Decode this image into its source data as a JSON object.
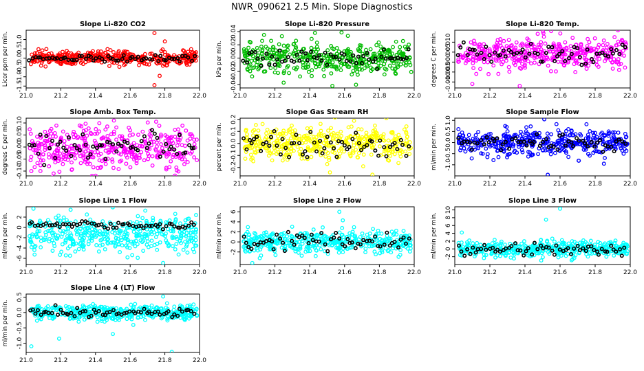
{
  "page": {
    "title": "NWR_090621  2.5 Min. Slope Diagnostics"
  },
  "chart_data": [
    {
      "id": "co2",
      "type": "scatter",
      "title": "Slope Li-820 CO2",
      "ylabel": "Licor ppm per min.",
      "color": "#ff0000",
      "xlim": [
        21.0,
        22.0
      ],
      "ylim": [
        -1.6,
        1.5
      ],
      "yticks": [
        -1.5,
        -1.0,
        -0.5,
        0.0,
        0.5,
        1.0
      ],
      "yticklabels": [
        "-1.5",
        "-1.0",
        "-0.5",
        "0.0",
        "0.5",
        "1.0"
      ],
      "xticks": [
        21.0,
        21.2,
        21.4,
        21.6,
        21.8,
        22.0
      ],
      "xticklabels": [
        "21.0",
        "21.2",
        "21.4",
        "21.6",
        "21.8",
        "22.0"
      ],
      "spread": 0.18,
      "black_spread": 0.1,
      "outliers": [
        [
          21.74,
          1.35
        ],
        [
          21.74,
          -1.45
        ],
        [
          21.77,
          -0.95
        ],
        [
          21.8,
          0.9
        ]
      ]
    },
    {
      "id": "pressure",
      "type": "scatter",
      "title": "Slope Li-820 Pressure",
      "ylabel": "kPa per min.",
      "color": "#00bb00",
      "xlim": [
        21.0,
        22.0
      ],
      "ylim": [
        -0.045,
        0.042
      ],
      "yticks": [
        -0.04,
        -0.02,
        0.0,
        0.02,
        0.04
      ],
      "yticklabels": [
        "-0.04",
        "-0.02",
        "0.00",
        "0.02",
        "0.04"
      ],
      "xticks": [
        21.0,
        21.2,
        21.4,
        21.6,
        21.8,
        22.0
      ],
      "xticklabels": [
        "21.0",
        "21.2",
        "21.4",
        "21.6",
        "21.8",
        "22.0"
      ],
      "spread": 0.012,
      "black_spread": 0.006,
      "outliers": [
        [
          21.43,
          0.038
        ],
        [
          21.24,
          0.033
        ],
        [
          21.53,
          -0.042
        ],
        [
          21.25,
          -0.037
        ]
      ]
    },
    {
      "id": "temp",
      "type": "scatter",
      "title": "Slope Li-820 Temp.",
      "ylabel": "degrees C per min.",
      "color": "#ff00ff",
      "xlim": [
        21.0,
        22.0
      ],
      "ylim": [
        -0.013,
        0.016
      ],
      "yticks": [
        -0.01,
        -0.005,
        0.0,
        0.005,
        0.01
      ],
      "yticklabels": [
        "-0.010",
        "-0.005",
        "0.000",
        "0.005",
        "0.010"
      ],
      "xticks": [
        21.0,
        21.2,
        21.4,
        21.6,
        21.8,
        22.0
      ],
      "xticklabels": [
        "21.0",
        "21.2",
        "21.4",
        "21.6",
        "21.8",
        "22.0"
      ],
      "center": 0.004,
      "spread": 0.004,
      "black_spread": 0.003,
      "outliers": [
        [
          21.93,
          0.016
        ],
        [
          21.1,
          -0.011
        ],
        [
          21.37,
          -0.012
        ]
      ]
    },
    {
      "id": "ambbox",
      "type": "scatter",
      "title": "Slope Amb. Box Temp.",
      "ylabel": "degrees C per min.",
      "color": "#ff00ff",
      "xlim": [
        21.0,
        22.0
      ],
      "ylim": [
        -0.12,
        0.12
      ],
      "yticks": [
        -0.1,
        -0.05,
        0.0,
        0.05,
        0.1
      ],
      "yticklabels": [
        "-0.10",
        "-0.05",
        "0.00",
        "0.05",
        "0.10"
      ],
      "xticks": [
        21.0,
        21.2,
        21.4,
        21.6,
        21.8,
        22.0
      ],
      "xticklabels": [
        "21.0",
        "21.2",
        "21.4",
        "21.6",
        "21.8",
        "22.0"
      ],
      "spread": 0.045,
      "black_spread": 0.03,
      "outliers": [
        [
          21.38,
          -0.12
        ],
        [
          21.03,
          -0.1
        ]
      ]
    },
    {
      "id": "rh",
      "type": "scatter",
      "title": "Slope Gas Stream RH",
      "ylabel": "percent per min.",
      "color": "#ffff00",
      "xlim": [
        21.0,
        22.0
      ],
      "ylim": [
        -0.27,
        0.21
      ],
      "yticks": [
        -0.2,
        -0.1,
        0.0,
        0.1,
        0.2
      ],
      "yticklabels": [
        "-0.2",
        "-0.1",
        "0.0",
        "0.1",
        "0.2"
      ],
      "xticks": [
        21.0,
        21.2,
        21.4,
        21.6,
        21.8,
        22.0
      ],
      "xticklabels": [
        "21.0",
        "21.2",
        "21.4",
        "21.6",
        "21.8",
        "22.0"
      ],
      "spread": 0.075,
      "black_spread": 0.06,
      "outliers": [
        [
          21.76,
          -0.26
        ],
        [
          21.84,
          0.21
        ]
      ]
    },
    {
      "id": "sampleflow",
      "type": "scatter",
      "title": "Slope Sample Flow",
      "ylabel": "ml/min per min.",
      "color": "#0000ff",
      "xlim": [
        21.0,
        22.0
      ],
      "ylim": [
        -1.5,
        1.1
      ],
      "yticks": [
        -1.0,
        -0.5,
        0.0,
        0.5,
        1.0
      ],
      "yticklabels": [
        "-1.0",
        "-0.5",
        "0.0",
        "0.5",
        "1.0"
      ],
      "xticks": [
        21.0,
        21.2,
        21.4,
        21.6,
        21.8,
        22.0
      ],
      "xticklabels": [
        "21.0",
        "21.2",
        "21.4",
        "21.6",
        "21.8",
        "22.0"
      ],
      "spread": 0.28,
      "black_spread": 0.2,
      "outliers": [
        [
          21.51,
          1.05
        ],
        [
          21.53,
          -1.45
        ],
        [
          21.85,
          -0.95
        ]
      ]
    },
    {
      "id": "line1",
      "type": "scatter",
      "title": "Slope Line 1 Flow",
      "ylabel": "ml/min per min.",
      "color": "#00ffff",
      "xlim": [
        21.0,
        22.0
      ],
      "ylim": [
        -7.2,
        4.0
      ],
      "yticks": [
        -6,
        -4,
        -2,
        0,
        2
      ],
      "yticklabels": [
        "-6",
        "-4",
        "-2",
        "0",
        "2"
      ],
      "xticks": [
        21.0,
        21.2,
        21.4,
        21.6,
        21.8,
        22.0
      ],
      "xticklabels": [
        "21.0",
        "21.2",
        "21.4",
        "21.6",
        "21.8",
        "22.0"
      ],
      "center": -1.5,
      "spread": 1.8,
      "black_center": 0.4,
      "black_spread": 0.3,
      "outliers": [
        [
          21.5,
          3.9
        ],
        [
          21.79,
          -6.9
        ],
        [
          21.98,
          2.4
        ]
      ]
    },
    {
      "id": "line2",
      "type": "scatter",
      "title": "Slope Line 2 Flow",
      "ylabel": "ml/min per min.",
      "color": "#00ffff",
      "xlim": [
        21.0,
        22.0
      ],
      "ylim": [
        -4.5,
        7.0
      ],
      "yticks": [
        -2,
        0,
        2,
        4,
        6
      ],
      "yticklabels": [
        "-2",
        "0",
        "2",
        "4",
        "6"
      ],
      "xticks": [
        21.0,
        21.2,
        21.4,
        21.6,
        21.8,
        22.0
      ],
      "xticklabels": [
        "21.0",
        "21.2",
        "21.4",
        "21.6",
        "21.8",
        "22.0"
      ],
      "spread": 1.1,
      "black_spread": 0.9,
      "outliers": [
        [
          21.57,
          6.0
        ],
        [
          21.07,
          -4.2
        ],
        [
          21.59,
          4.3
        ]
      ]
    },
    {
      "id": "line3",
      "type": "scatter",
      "title": "Slope Line 3 Flow",
      "ylabel": "ml/min per min.",
      "color": "#00ffff",
      "xlim": [
        21.0,
        22.0
      ],
      "ylim": [
        -4.0,
        10.8
      ],
      "yticks": [
        -2,
        0,
        2,
        4,
        6,
        8,
        10
      ],
      "yticklabels": [
        "-2",
        "0",
        "2",
        "4",
        "6",
        "8",
        "10"
      ],
      "xticks": [
        21.0,
        21.2,
        21.4,
        21.6,
        21.8,
        22.0
      ],
      "xticklabels": [
        "21.0",
        "21.2",
        "21.4",
        "21.6",
        "21.8",
        "22.0"
      ],
      "spread": 1.0,
      "black_spread": 0.8,
      "outliers": [
        [
          21.6,
          10.3
        ],
        [
          21.52,
          7.5
        ],
        [
          21.04,
          4.2
        ]
      ]
    },
    {
      "id": "line4",
      "type": "scatter",
      "title": "Slope Line 4 (LT) Flow",
      "ylabel": "ml/min per min.",
      "color": "#00ffff",
      "xlim": [
        21.0,
        22.0
      ],
      "ylim": [
        -1.3,
        0.6
      ],
      "yticks": [
        -1.0,
        -0.5,
        0.0,
        0.5
      ],
      "yticklabels": [
        "-1.0",
        "-0.5",
        "0.0",
        "0.5"
      ],
      "xticks": [
        21.0,
        21.2,
        21.4,
        21.6,
        21.8,
        22.0
      ],
      "xticklabels": [
        "21.0",
        "21.2",
        "21.4",
        "21.6",
        "21.8",
        "22.0"
      ],
      "spread": 0.12,
      "black_spread": 0.08,
      "outliers": [
        [
          21.03,
          -1.1
        ],
        [
          21.19,
          -0.85
        ],
        [
          21.5,
          -0.7
        ],
        [
          21.84,
          -1.28
        ],
        [
          21.79,
          0.52
        ]
      ]
    }
  ]
}
